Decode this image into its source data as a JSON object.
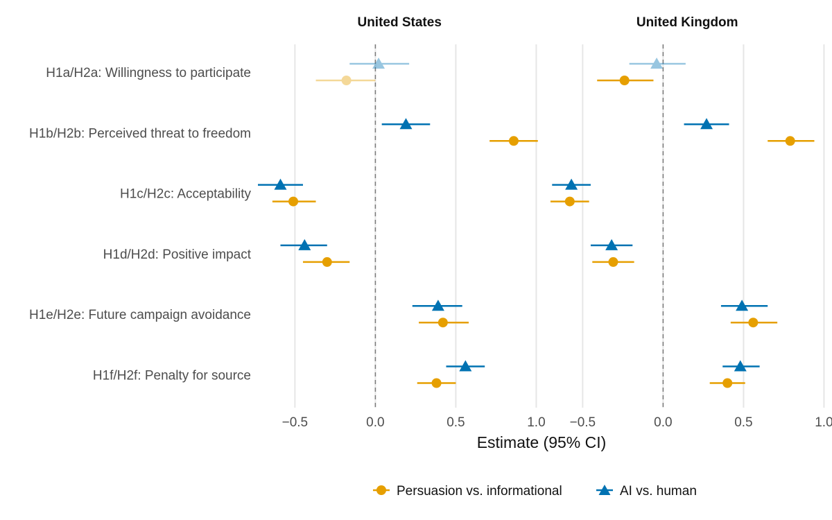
{
  "chart_data": {
    "type": "scatter",
    "subtype": "forest-plot",
    "xlabel": "Estimate (95% CI)",
    "x_ticks": [
      -0.5,
      0.0,
      0.5,
      1.0
    ],
    "x_tick_labels": [
      "−0.5",
      "0.0",
      "0.5",
      "1.0"
    ],
    "xlim": [
      -0.73,
      1.08
    ],
    "grid": true,
    "reference_line": 0,
    "legend_position": "bottom",
    "rows": [
      "H1a/H2a: Willingness to participate",
      "H1b/H2b: Perceived threat to freedom",
      "H1c/H2c: Acceptability",
      "H1d/H2d: Positive impact",
      "H1e/H2e: Future campaign avoidance",
      "H1f/H2f: Penalty for source"
    ],
    "series": [
      {
        "name": "Persuasion vs. informational",
        "marker": "circle",
        "color": "#E69F00"
      },
      {
        "name": "AI vs. human",
        "marker": "triangle",
        "color": "#0072B2"
      }
    ],
    "panels": [
      {
        "title": "United States",
        "estimates": [
          [
            {
              "est": -0.18,
              "lo": -0.37,
              "hi": 0.0,
              "faded": true
            },
            {
              "est": 0.86,
              "lo": 0.71,
              "hi": 1.01,
              "faded": false
            },
            {
              "est": -0.51,
              "lo": -0.64,
              "hi": -0.37,
              "faded": false
            },
            {
              "est": -0.3,
              "lo": -0.45,
              "hi": -0.16,
              "faded": false
            },
            {
              "est": 0.42,
              "lo": 0.27,
              "hi": 0.58,
              "faded": false
            },
            {
              "est": 0.38,
              "lo": 0.26,
              "hi": 0.5,
              "faded": false
            }
          ],
          [
            {
              "est": 0.02,
              "lo": -0.16,
              "hi": 0.21,
              "faded": true
            },
            {
              "est": 0.19,
              "lo": 0.04,
              "hi": 0.34,
              "faded": false
            },
            {
              "est": -0.59,
              "lo": -0.73,
              "hi": -0.45,
              "faded": false
            },
            {
              "est": -0.44,
              "lo": -0.59,
              "hi": -0.3,
              "faded": false
            },
            {
              "est": 0.39,
              "lo": 0.23,
              "hi": 0.54,
              "faded": false
            },
            {
              "est": 0.56,
              "lo": 0.44,
              "hi": 0.68,
              "faded": false
            }
          ]
        ]
      },
      {
        "title": "United Kingdom",
        "estimates": [
          [
            {
              "est": -0.24,
              "lo": -0.41,
              "hi": -0.06,
              "faded": false
            },
            {
              "est": 0.79,
              "lo": 0.65,
              "hi": 0.94,
              "faded": false
            },
            {
              "est": -0.58,
              "lo": -0.7,
              "hi": -0.46,
              "faded": false
            },
            {
              "est": -0.31,
              "lo": -0.44,
              "hi": -0.18,
              "faded": false
            },
            {
              "est": 0.56,
              "lo": 0.42,
              "hi": 0.71,
              "faded": false
            },
            {
              "est": 0.4,
              "lo": 0.29,
              "hi": 0.51,
              "faded": false
            }
          ],
          [
            {
              "est": -0.04,
              "lo": -0.21,
              "hi": 0.14,
              "faded": true
            },
            {
              "est": 0.27,
              "lo": 0.13,
              "hi": 0.41,
              "faded": false
            },
            {
              "est": -0.57,
              "lo": -0.69,
              "hi": -0.45,
              "faded": false
            },
            {
              "est": -0.32,
              "lo": -0.45,
              "hi": -0.19,
              "faded": false
            },
            {
              "est": 0.49,
              "lo": 0.36,
              "hi": 0.65,
              "faded": false
            },
            {
              "est": 0.48,
              "lo": 0.37,
              "hi": 0.6,
              "faded": false
            }
          ]
        ]
      }
    ]
  }
}
